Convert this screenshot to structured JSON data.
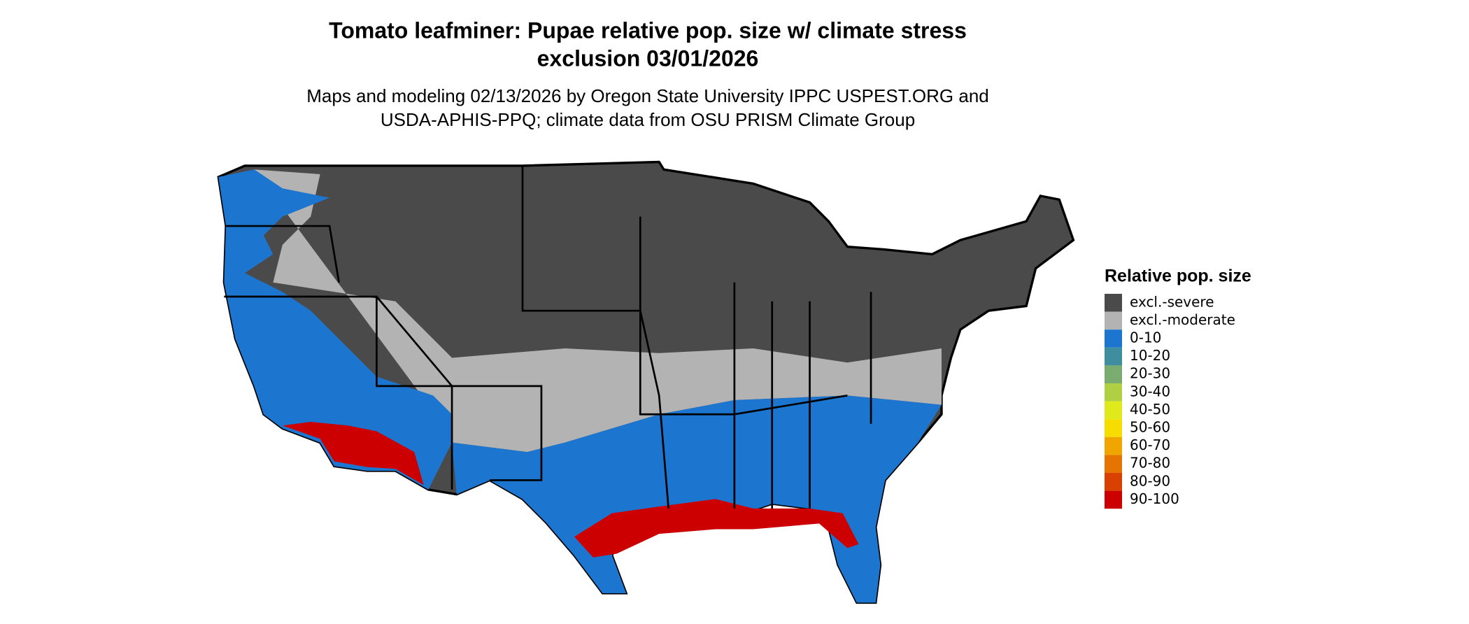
{
  "title": [
    "Tomato leafminer: Pupae relative pop. size w/ climate stress",
    "exclusion 03/01/2026"
  ],
  "subtitle": [
    "Maps and modeling 02/13/2026 by Oregon State University IPPC USPEST.ORG and",
    "USDA-APHIS-PPQ; climate data from OSU PRISM Climate Group"
  ],
  "legend": {
    "title": "Relative pop. size",
    "items": [
      {
        "label": "excl.-severe",
        "color": "#4a4a4a"
      },
      {
        "label": "excl.-moderate",
        "color": "#b3b3b3"
      },
      {
        "label": "0-10",
        "color": "#1c75cf"
      },
      {
        "label": "10-20",
        "color": "#3e8ea0"
      },
      {
        "label": "20-30",
        "color": "#79ac6e"
      },
      {
        "label": "30-40",
        "color": "#b0cf43"
      },
      {
        "label": "40-50",
        "color": "#e0e91c"
      },
      {
        "label": "50-60",
        "color": "#f7dc00"
      },
      {
        "label": "60-70",
        "color": "#f0a500"
      },
      {
        "label": "70-80",
        "color": "#e57400"
      },
      {
        "label": "80-90",
        "color": "#d94100"
      },
      {
        "label": "90-100",
        "color": "#cc0000"
      }
    ]
  }
}
